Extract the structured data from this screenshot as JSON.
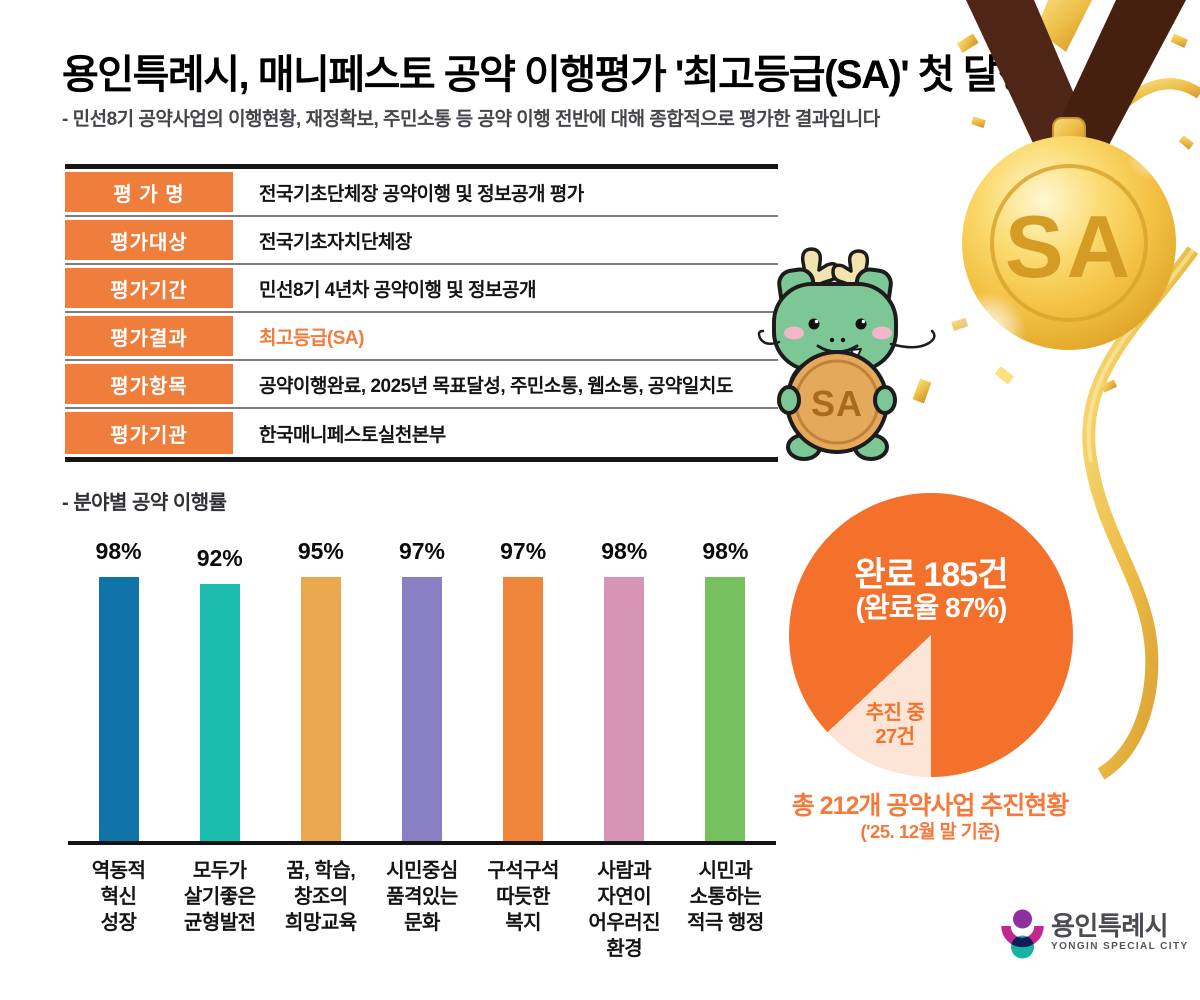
{
  "header": {
    "title": "용인특례시, 매니페스토 공약 이행평가 '최고등급(SA)' 첫 달성",
    "subtitle": "- 민선8기 공약사업의 이행현황, 재정확보, 주민소통 등 공약 이행 전반에 대해 종합적으로 평가한 결과입니다"
  },
  "medal": {
    "label": "SA",
    "ribbon_color": "#4e2517",
    "gold_color": "#f3c044"
  },
  "mascot": {
    "coin_label": "SA",
    "body_color": "#7cc795"
  },
  "table": {
    "accent_color": "#ef7d3c",
    "rows": [
      {
        "label": "평 가 명",
        "value": "전국기초단체장 공약이행 및 정보공개 평가"
      },
      {
        "label": "평가대상",
        "value": "전국기초자치단체장"
      },
      {
        "label": "평가기간",
        "value": "민선8기 4년차 공약이행 및 정보공개"
      },
      {
        "label": "평가결과",
        "value": "최고등급(SA)",
        "highlight": true
      },
      {
        "label": "평가항목",
        "value": "공약이행완료, 2025년 목표달성, 주민소통, 웹소통, 공약일치도"
      },
      {
        "label": "평가기관",
        "value": "한국매니페스토실천본부"
      }
    ]
  },
  "chart_section": {
    "label": "- 분야별 공약 이행률"
  },
  "chart_data": [
    {
      "type": "bar",
      "title": "분야별 공약 이행률",
      "categories": [
        "역동적\n혁신\n성장",
        "모두가\n살기좋은\n균형발전",
        "꿈, 학습,\n창조의\n희망교육",
        "시민중심\n품격있는\n문화",
        "구석구석\n따듯한\n복지",
        "사람과\n자연이\n어우러진\n환경",
        "시민과\n소통하는\n적극 행정"
      ],
      "values": [
        98,
        92,
        95,
        97,
        97,
        98,
        98
      ],
      "value_labels": [
        "98%",
        "92%",
        "95%",
        "97%",
        "97%",
        "98%",
        "98%"
      ],
      "colors": [
        "#1174a8",
        "#1bbcae",
        "#eaa84e",
        "#8880c3",
        "#f0863c",
        "#d795b5",
        "#76c05f"
      ],
      "ylim": [
        0,
        100
      ],
      "unit": "%",
      "grid": false
    },
    {
      "type": "pie",
      "title": "총 212개 공약사업 추진현황",
      "total": 212,
      "slices": [
        {
          "label": "완료",
          "count": 185,
          "pct": 87,
          "color": "#f4712c"
        },
        {
          "label": "추진 중",
          "count": 27,
          "pct": 13,
          "color": "#fce4d6"
        }
      ],
      "labels": {
        "main": "완료 185건",
        "sub": "(완료율 87%)",
        "wedge": "추진 중\n27건"
      }
    }
  ],
  "pie_captions": {
    "line1": "총 212개 공약사업 추진현황",
    "line2": "('25. 12월 말 기준)"
  },
  "logo": {
    "name": "용인특례시",
    "subname": "YONGIN SPECIAL CITY"
  }
}
